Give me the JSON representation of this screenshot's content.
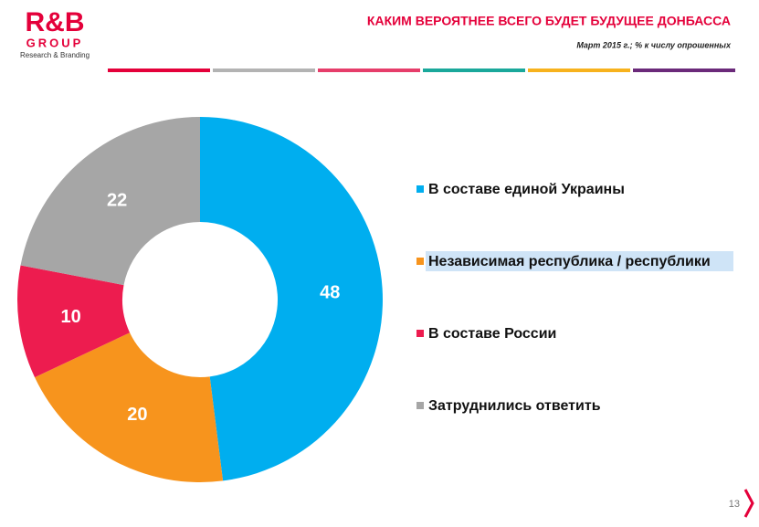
{
  "logo": {
    "name": "R&B",
    "group": "GROUP",
    "tagline": "Research & Branding"
  },
  "page_number": "13",
  "chart_data": {
    "type": "donut",
    "title": "КАКИМ  ВЕРОЯТНЕЕ ВСЕГО БУДЕТ БУДУЩЕЕ ДОНБАССА",
    "subtitle": "Март  2015 г.; % к числу опрошенных",
    "categories": [
      "В составе единой Украины",
      "Независимая республика / республики",
      "В составе России",
      "Затруднились ответить"
    ],
    "values": [
      48,
      20,
      10,
      22
    ],
    "colors": [
      "#00aeef",
      "#f7941d",
      "#ed1c4f",
      "#a6a6a6"
    ]
  }
}
